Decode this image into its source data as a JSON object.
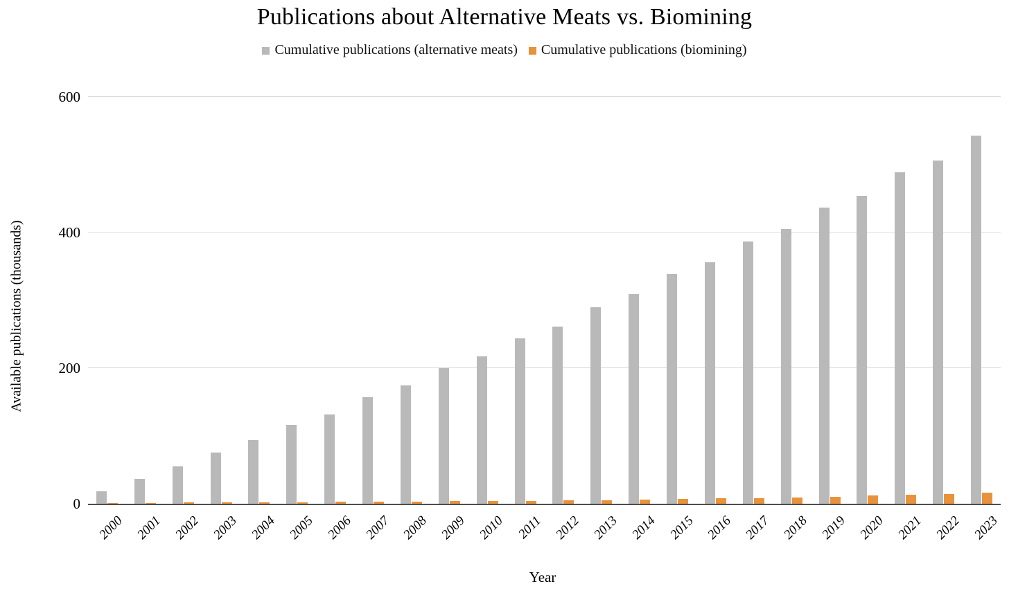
{
  "chart_data": {
    "type": "bar",
    "title": "Publications about Alternative Meats vs. Biomining",
    "xlabel": "Year",
    "ylabel": "Available publications (thousands)",
    "ylim": [
      0,
      600
    ],
    "yticks": [
      0,
      200,
      400,
      600
    ],
    "grid": "horizontal",
    "legend_position": "top",
    "categories": [
      "2000",
      "2001",
      "2002",
      "2003",
      "2004",
      "2005",
      "2006",
      "2007",
      "2008",
      "2009",
      "2010",
      "2011",
      "2012",
      "2013",
      "2014",
      "2015",
      "2016",
      "2017",
      "2018",
      "2019",
      "2020",
      "2021",
      "2022",
      "2023"
    ],
    "series": [
      {
        "name": "Cumulative publications (alternative meats)",
        "key": "alternative-meats",
        "color": "#b9b9b9",
        "values": [
          18,
          37,
          55,
          76,
          94,
          116,
          132,
          157,
          174,
          200,
          217,
          244,
          261,
          290,
          309,
          339,
          356,
          387,
          405,
          437,
          454,
          489,
          506,
          543
        ]
      },
      {
        "name": "Cumulative publications (biomining)",
        "key": "biomining",
        "color": "#e8923c",
        "values": [
          1,
          1.5,
          2,
          2,
          2.5,
          2.5,
          3,
          3,
          3.5,
          4,
          4,
          4.5,
          5,
          5.5,
          6,
          7,
          8,
          8.5,
          9.5,
          10.5,
          12,
          13,
          14.5,
          16
        ]
      }
    ],
    "colors": {
      "axis_line": "#4d4d4d",
      "gridline": "#dcdcdc",
      "text": "#111111",
      "background": "#ffffff"
    }
  }
}
